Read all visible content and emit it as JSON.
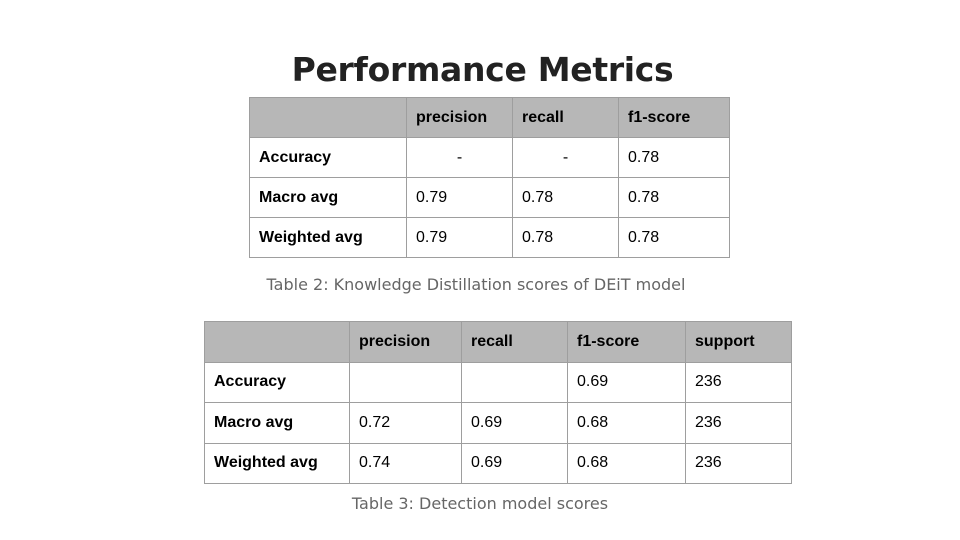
{
  "title": "Performance Metrics",
  "table2": {
    "headers": [
      "",
      "precision",
      "recall",
      "f1-score"
    ],
    "rows": [
      [
        "Accuracy",
        "-",
        "-",
        "0.78"
      ],
      [
        "Macro avg",
        "0.79",
        "0.78",
        "0.78"
      ],
      [
        "Weighted avg",
        "0.79",
        "0.78",
        "0.78"
      ]
    ],
    "caption": "Table 2: Knowledge Distillation scores of DEiT model"
  },
  "table3": {
    "headers": [
      "",
      "precision",
      "recall",
      "f1-score",
      "support"
    ],
    "rows": [
      [
        "Accuracy",
        "",
        "",
        "0.69",
        "236"
      ],
      [
        "Macro avg",
        "0.72",
        "0.69",
        "0.68",
        "236"
      ],
      [
        "Weighted avg",
        "0.74",
        "0.69",
        "0.68",
        "236"
      ]
    ],
    "caption": "Table 3: Detection model scores"
  }
}
